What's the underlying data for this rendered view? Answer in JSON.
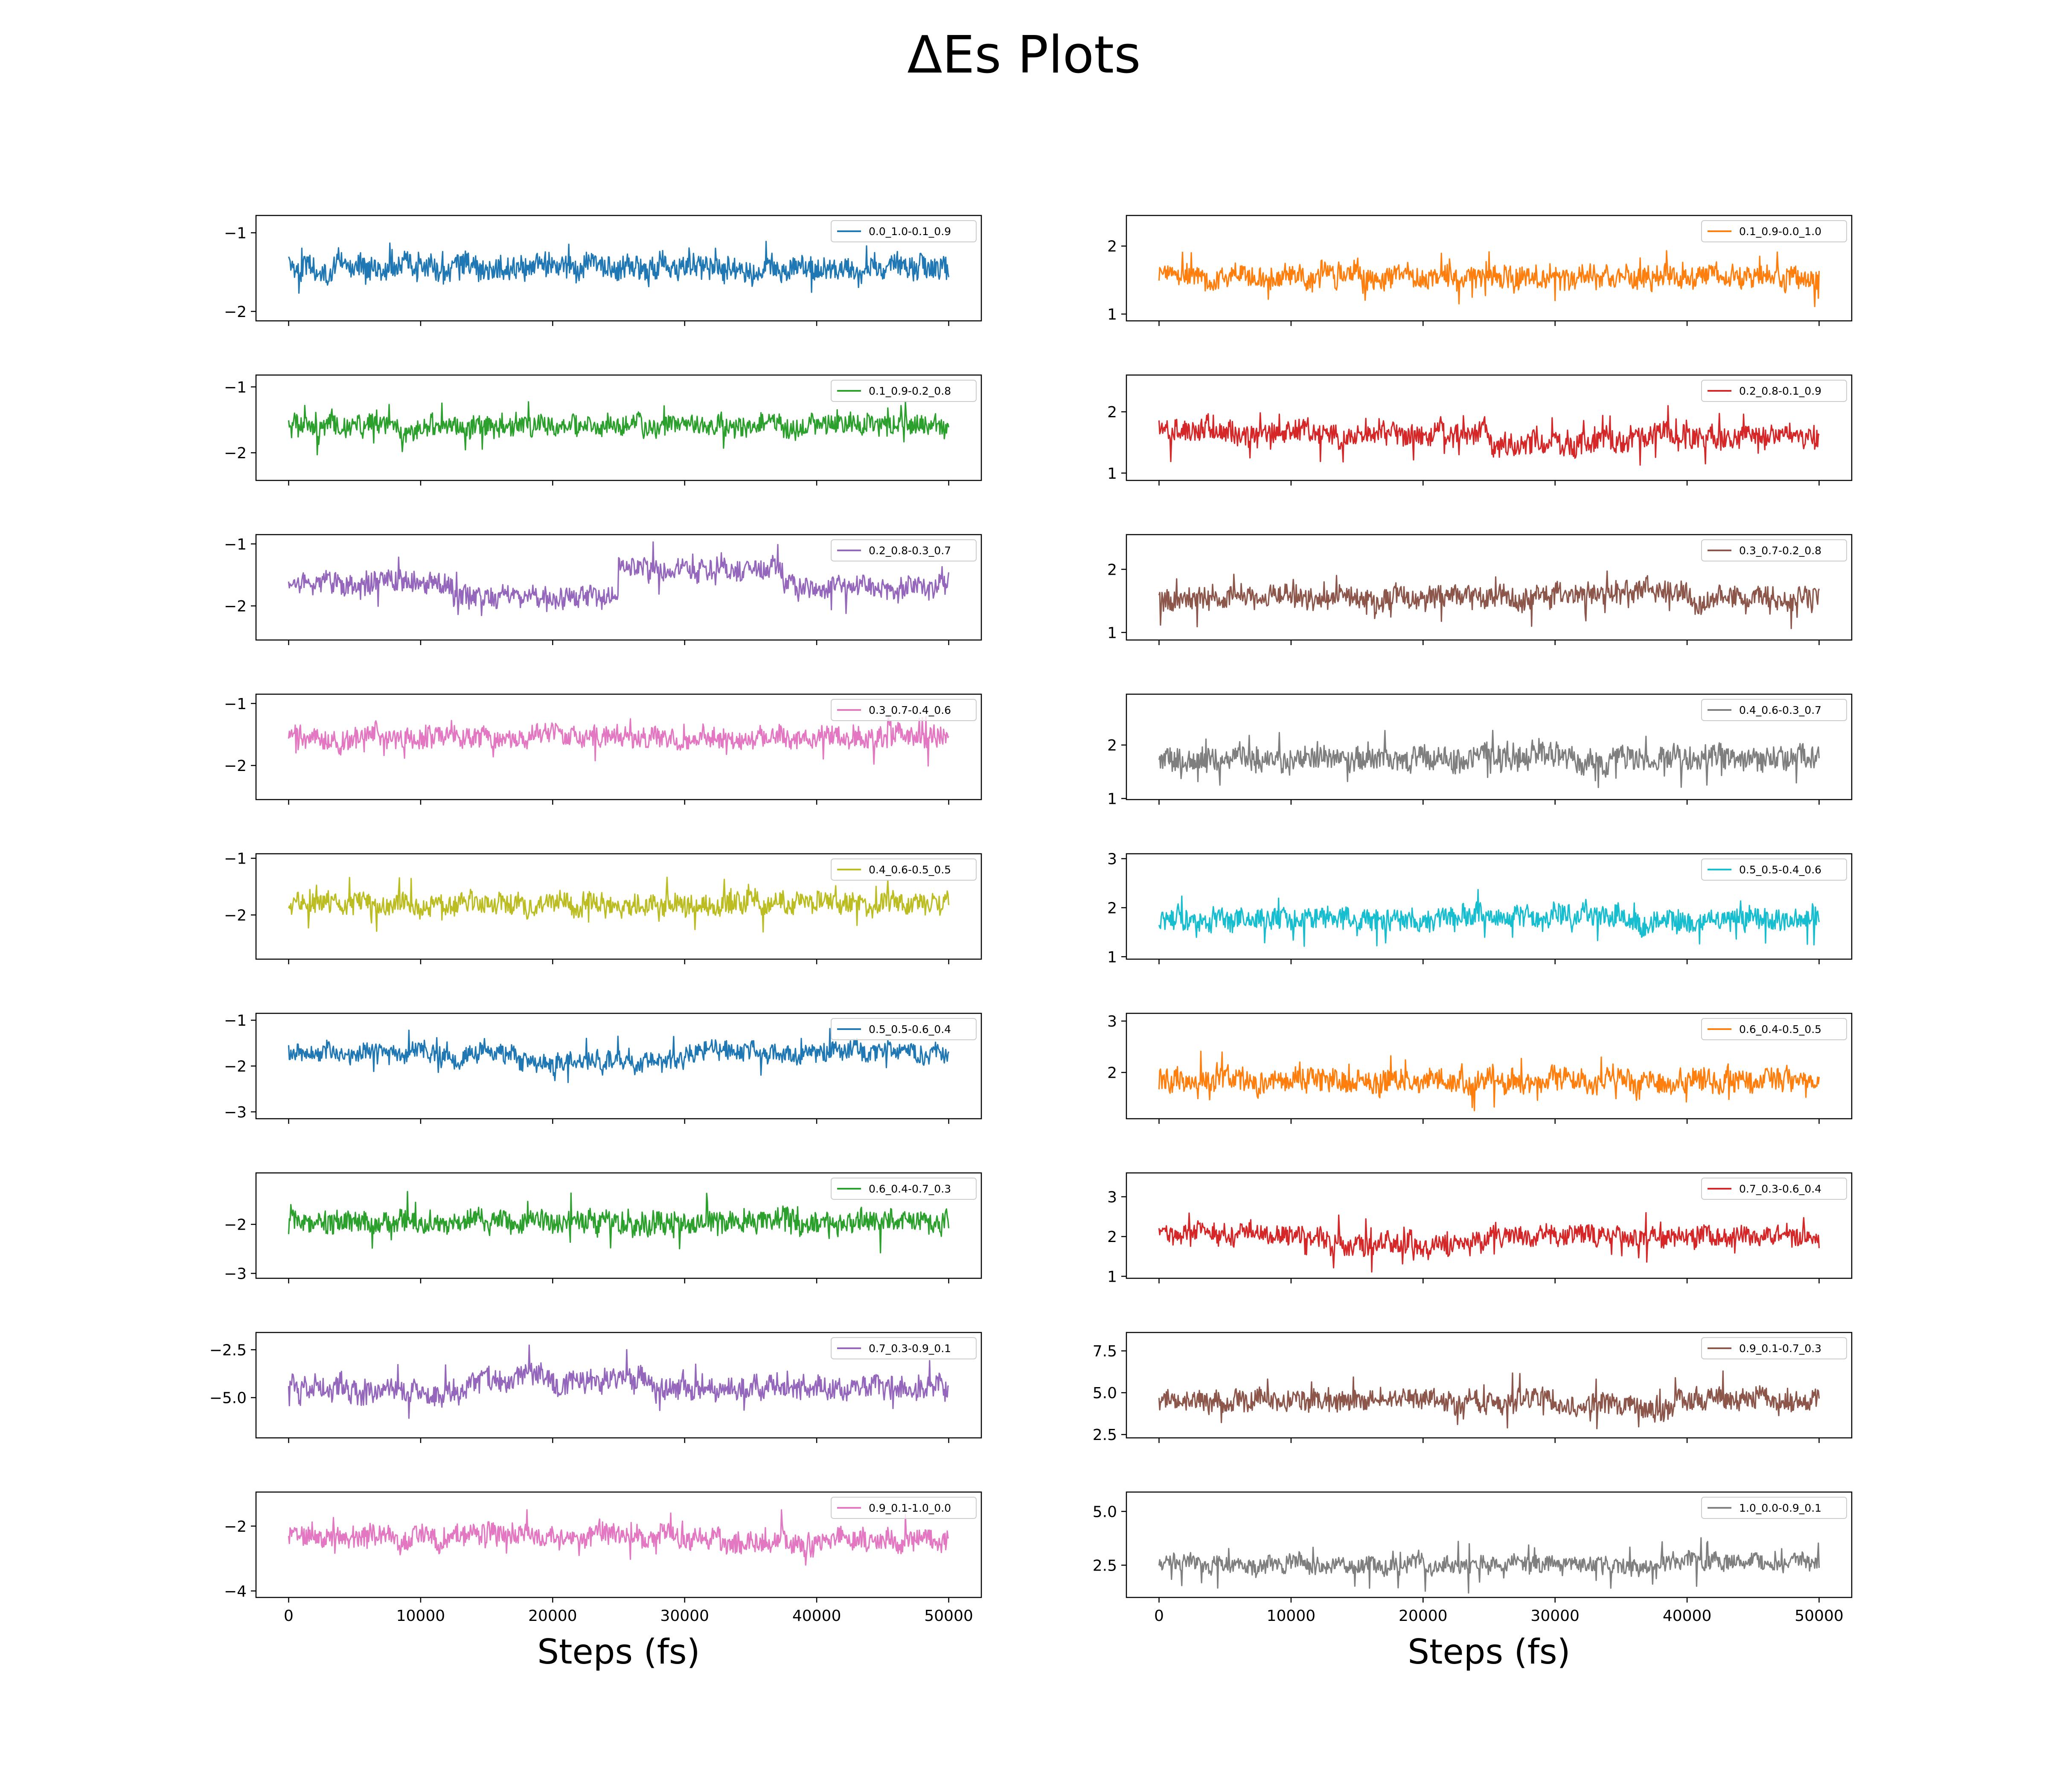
{
  "title": "ΔEs Plots",
  "chart_data": [
    {
      "type": "line",
      "column": "left",
      "row": 0,
      "series": [
        {
          "name": "0.0_1.0-0.1_0.9",
          "color": "#1f77b4",
          "mean": -1.45,
          "noise": 0.14,
          "spike": 0.25,
          "shifts": []
        }
      ],
      "x": {
        "min": 0,
        "max": 50000,
        "ticks": [
          0,
          10000,
          20000,
          30000,
          40000,
          50000
        ],
        "labels": [
          "0",
          "10000",
          "20000",
          "30000",
          "40000",
          "50000"
        ]
      },
      "ylim": [
        -2.12,
        -0.78
      ],
      "yticks": [
        -1,
        -2
      ],
      "ytick_labels": [
        "−1",
        "−2"
      ],
      "xlabel": "",
      "ylabel": "",
      "grid": false,
      "legend": "top-right"
    },
    {
      "type": "line",
      "column": "left",
      "row": 1,
      "series": [
        {
          "name": "0.1_0.9-0.2_0.8",
          "color": "#2ca02c",
          "mean": -1.6,
          "noise": 0.14,
          "spike": 0.25,
          "shifts": []
        }
      ],
      "x": {
        "min": 0,
        "max": 50000,
        "ticks": [
          0,
          10000,
          20000,
          30000,
          40000,
          50000
        ],
        "labels": [
          "0",
          "10000",
          "20000",
          "30000",
          "40000",
          "50000"
        ]
      },
      "ylim": [
        -2.42,
        -0.82
      ],
      "yticks": [
        -1,
        -2
      ],
      "ytick_labels": [
        "−1",
        "−2"
      ],
      "xlabel": "",
      "ylabel": "",
      "grid": false,
      "legend": "top-right"
    },
    {
      "type": "line",
      "column": "left",
      "row": 2,
      "series": [
        {
          "name": "0.2_0.8-0.3_0.7",
          "color": "#9467bd",
          "mean": -1.65,
          "noise": 0.15,
          "spike": 0.28,
          "shifts": [
            [
              0,
              0.25,
              0
            ],
            [
              0.25,
              0.5,
              -0.2
            ],
            [
              0.5,
              0.75,
              0.25
            ],
            [
              0.75,
              1,
              -0.05
            ]
          ]
        }
      ],
      "x": {
        "min": 0,
        "max": 50000,
        "ticks": [
          0,
          10000,
          20000,
          30000,
          40000,
          50000
        ],
        "labels": [
          "0",
          "10000",
          "20000",
          "30000",
          "40000",
          "50000"
        ]
      },
      "ylim": [
        -2.55,
        -0.85
      ],
      "yticks": [
        -1,
        -2
      ],
      "ytick_labels": [
        "−1",
        "−2"
      ],
      "xlabel": "",
      "ylabel": "",
      "grid": false,
      "legend": "top-right"
    },
    {
      "type": "line",
      "column": "left",
      "row": 3,
      "series": [
        {
          "name": "0.3_0.7-0.4_0.6",
          "color": "#e377c2",
          "mean": -1.55,
          "noise": 0.15,
          "spike": 0.27,
          "shifts": []
        }
      ],
      "x": {
        "min": 0,
        "max": 50000,
        "ticks": [
          0,
          10000,
          20000,
          30000,
          40000,
          50000
        ],
        "labels": [
          "0",
          "10000",
          "20000",
          "30000",
          "40000",
          "50000"
        ]
      },
      "ylim": [
        -2.55,
        -0.85
      ],
      "yticks": [
        -1,
        -2
      ],
      "ytick_labels": [
        "−1",
        "−2"
      ],
      "xlabel": "",
      "ylabel": "",
      "grid": false,
      "legend": "top-right"
    },
    {
      "type": "line",
      "column": "left",
      "row": 4,
      "series": [
        {
          "name": "0.4_0.6-0.5_0.5",
          "color": "#bcbd22",
          "mean": -1.8,
          "noise": 0.17,
          "spike": 0.3,
          "shifts": []
        }
      ],
      "x": {
        "min": 0,
        "max": 50000,
        "ticks": [
          0,
          10000,
          20000,
          30000,
          40000,
          50000
        ],
        "labels": [
          "0",
          "10000",
          "20000",
          "30000",
          "40000",
          "50000"
        ]
      },
      "ylim": [
        -2.78,
        -0.92
      ],
      "yticks": [
        -1,
        -2
      ],
      "ytick_labels": [
        "−1",
        "−2"
      ],
      "xlabel": "",
      "ylabel": "",
      "grid": false,
      "legend": "top-right"
    },
    {
      "type": "line",
      "column": "left",
      "row": 5,
      "series": [
        {
          "name": "0.5_0.5-0.6_0.4",
          "color": "#1f77b4",
          "mean": -1.75,
          "noise": 0.18,
          "spike": 0.35,
          "shifts": [
            [
              0,
              0.35,
              0
            ],
            [
              0.35,
              0.6,
              -0.15
            ],
            [
              0.6,
              1,
              0.05
            ]
          ]
        }
      ],
      "x": {
        "min": 0,
        "max": 50000,
        "ticks": [
          0,
          10000,
          20000,
          30000,
          40000,
          50000
        ],
        "labels": [
          "0",
          "10000",
          "20000",
          "30000",
          "40000",
          "50000"
        ]
      },
      "ylim": [
        -3.15,
        -0.85
      ],
      "yticks": [
        -1,
        -2,
        -3
      ],
      "ytick_labels": [
        "−1",
        "−2",
        "−3"
      ],
      "xlabel": "",
      "ylabel": "",
      "grid": false,
      "legend": "top-right"
    },
    {
      "type": "line",
      "column": "left",
      "row": 6,
      "series": [
        {
          "name": "0.6_0.4-0.7_0.3",
          "color": "#2ca02c",
          "mean": -1.95,
          "noise": 0.2,
          "spike": 0.4,
          "shifts": []
        }
      ],
      "x": {
        "min": 0,
        "max": 50000,
        "ticks": [
          0,
          10000,
          20000,
          30000,
          40000,
          50000
        ],
        "labels": [
          "0",
          "10000",
          "20000",
          "30000",
          "40000",
          "50000"
        ]
      },
      "ylim": [
        -3.1,
        -0.95
      ],
      "yticks": [
        -2,
        -3
      ],
      "ytick_labels": [
        "−2",
        "−3"
      ],
      "xlabel": "",
      "ylabel": "",
      "grid": false,
      "legend": "top-right"
    },
    {
      "type": "line",
      "column": "left",
      "row": 7,
      "series": [
        {
          "name": "0.7_0.3-0.9_0.1",
          "color": "#9467bd",
          "mean": -4.6,
          "noise": 0.55,
          "spike": 0.9,
          "shifts": [
            [
              0,
              0.27,
              0
            ],
            [
              0.27,
              0.55,
              0.6
            ],
            [
              0.55,
              1,
              0.1
            ]
          ]
        }
      ],
      "x": {
        "min": 0,
        "max": 50000,
        "ticks": [
          0,
          10000,
          20000,
          30000,
          40000,
          50000
        ],
        "labels": [
          "0",
          "10000",
          "20000",
          "30000",
          "40000",
          "50000"
        ]
      },
      "ylim": [
        -7.1,
        -1.6
      ],
      "yticks": [
        -2.5,
        -5.0
      ],
      "ytick_labels": [
        "−2.5",
        "−5.0"
      ],
      "xlabel": "",
      "ylabel": "",
      "grid": false,
      "legend": "top-right"
    },
    {
      "type": "line",
      "column": "left",
      "row": 8,
      "series": [
        {
          "name": "0.9_0.1-1.0_0.0",
          "color": "#e377c2",
          "mean": -2.4,
          "noise": 0.3,
          "spike": 0.6,
          "shifts": [
            [
              0,
              0.6,
              0.1
            ],
            [
              0.6,
              1,
              -0.05
            ]
          ]
        }
      ],
      "x": {
        "min": 0,
        "max": 50000,
        "ticks": [
          0,
          10000,
          20000,
          30000,
          40000,
          50000
        ],
        "labels": [
          "0",
          "10000",
          "20000",
          "30000",
          "40000",
          "50000"
        ]
      },
      "ylim": [
        -4.2,
        -0.95
      ],
      "yticks": [
        -2,
        -4
      ],
      "ytick_labels": [
        "−2",
        "−4"
      ],
      "xlabel": "Steps (fs)",
      "ylabel": "",
      "grid": false,
      "legend": "top-right"
    },
    {
      "type": "line",
      "column": "right",
      "row": 0,
      "series": [
        {
          "name": "0.1_0.9-0.0_1.0",
          "color": "#ff7f0e",
          "mean": 1.55,
          "noise": 0.15,
          "spike": 0.27,
          "shifts": []
        }
      ],
      "x": {
        "min": 0,
        "max": 50000,
        "ticks": [
          0,
          10000,
          20000,
          30000,
          40000,
          50000
        ],
        "labels": [
          "0",
          "10000",
          "20000",
          "30000",
          "40000",
          "50000"
        ]
      },
      "ylim": [
        0.9,
        2.45
      ],
      "yticks": [
        1,
        2
      ],
      "ytick_labels": [
        "1",
        "2"
      ],
      "xlabel": "",
      "ylabel": "",
      "grid": false,
      "legend": "top-right"
    },
    {
      "type": "line",
      "column": "right",
      "row": 1,
      "series": [
        {
          "name": "0.2_0.8-0.1_0.9",
          "color": "#d62728",
          "mean": 1.6,
          "noise": 0.17,
          "spike": 0.3,
          "shifts": [
            [
              0,
              0.5,
              0.05
            ],
            [
              0.5,
              0.75,
              -0.1
            ],
            [
              0.75,
              1,
              0.0
            ]
          ]
        }
      ],
      "x": {
        "min": 0,
        "max": 50000,
        "ticks": [
          0,
          10000,
          20000,
          30000,
          40000,
          50000
        ],
        "labels": [
          "0",
          "10000",
          "20000",
          "30000",
          "40000",
          "50000"
        ]
      },
      "ylim": [
        0.88,
        2.6
      ],
      "yticks": [
        1,
        2
      ],
      "ytick_labels": [
        "1",
        "2"
      ],
      "xlabel": "",
      "ylabel": "",
      "grid": false,
      "legend": "top-right"
    },
    {
      "type": "line",
      "column": "right",
      "row": 2,
      "series": [
        {
          "name": "0.3_0.7-0.2_0.8",
          "color": "#8c564b",
          "mean": 1.55,
          "noise": 0.16,
          "spike": 0.3,
          "shifts": [
            [
              0,
              0.6,
              0
            ],
            [
              0.6,
              0.8,
              0.1
            ],
            [
              0.8,
              1,
              0
            ]
          ]
        }
      ],
      "x": {
        "min": 0,
        "max": 50000,
        "ticks": [
          0,
          10000,
          20000,
          30000,
          40000,
          50000
        ],
        "labels": [
          "0",
          "10000",
          "20000",
          "30000",
          "40000",
          "50000"
        ]
      },
      "ylim": [
        0.88,
        2.55
      ],
      "yticks": [
        1,
        2
      ],
      "ytick_labels": [
        "1",
        "2"
      ],
      "xlabel": "",
      "ylabel": "",
      "grid": false,
      "legend": "top-right"
    },
    {
      "type": "line",
      "column": "right",
      "row": 3,
      "series": [
        {
          "name": "0.4_0.6-0.3_0.7",
          "color": "#7f7f7f",
          "mean": 1.75,
          "noise": 0.2,
          "spike": 0.35,
          "shifts": []
        }
      ],
      "x": {
        "min": 0,
        "max": 50000,
        "ticks": [
          0,
          10000,
          20000,
          30000,
          40000,
          50000
        ],
        "labels": [
          "0",
          "10000",
          "20000",
          "30000",
          "40000",
          "50000"
        ]
      },
      "ylim": [
        0.98,
        2.95
      ],
      "yticks": [
        1,
        2
      ],
      "ytick_labels": [
        "1",
        "2"
      ],
      "xlabel": "",
      "ylabel": "",
      "grid": false,
      "legend": "top-right"
    },
    {
      "type": "line",
      "column": "right",
      "row": 4,
      "series": [
        {
          "name": "0.5_0.5-0.4_0.6",
          "color": "#17becf",
          "mean": 1.75,
          "noise": 0.2,
          "spike": 0.4,
          "shifts": [
            [
              0,
              0.45,
              0
            ],
            [
              0.45,
              0.7,
              0.1
            ],
            [
              0.7,
              1,
              0
            ]
          ]
        }
      ],
      "x": {
        "min": 0,
        "max": 50000,
        "ticks": [
          0,
          10000,
          20000,
          30000,
          40000,
          50000
        ],
        "labels": [
          "0",
          "10000",
          "20000",
          "30000",
          "40000",
          "50000"
        ]
      },
      "ylim": [
        0.95,
        3.1
      ],
      "yticks": [
        1,
        2,
        3
      ],
      "ytick_labels": [
        "1",
        "2",
        "3"
      ],
      "xlabel": "",
      "ylabel": "",
      "grid": false,
      "legend": "top-right"
    },
    {
      "type": "line",
      "column": "right",
      "row": 5,
      "series": [
        {
          "name": "0.6_0.4-0.5_0.5",
          "color": "#ff7f0e",
          "mean": 1.85,
          "noise": 0.2,
          "spike": 0.45,
          "shifts": []
        }
      ],
      "x": {
        "min": 0,
        "max": 50000,
        "ticks": [
          0,
          10000,
          20000,
          30000,
          40000,
          50000
        ],
        "labels": [
          "0",
          "10000",
          "20000",
          "30000",
          "40000",
          "50000"
        ]
      },
      "ylim": [
        1.1,
        3.15
      ],
      "yticks": [
        2,
        3
      ],
      "ytick_labels": [
        "2",
        "3"
      ],
      "xlabel": "",
      "ylabel": "",
      "grid": false,
      "legend": "top-right"
    },
    {
      "type": "line",
      "column": "right",
      "row": 6,
      "series": [
        {
          "name": "0.7_0.3-0.6_0.4",
          "color": "#d62728",
          "mean": 2.0,
          "noise": 0.22,
          "spike": 0.45,
          "shifts": [
            [
              0,
              0.25,
              0.05
            ],
            [
              0.25,
              0.5,
              -0.2
            ],
            [
              0.5,
              1,
              0
            ]
          ]
        }
      ],
      "x": {
        "min": 0,
        "max": 50000,
        "ticks": [
          0,
          10000,
          20000,
          30000,
          40000,
          50000
        ],
        "labels": [
          "0",
          "10000",
          "20000",
          "30000",
          "40000",
          "50000"
        ]
      },
      "ylim": [
        0.95,
        3.6
      ],
      "yticks": [
        1,
        2,
        3
      ],
      "ytick_labels": [
        "1",
        "2",
        "3"
      ],
      "xlabel": "",
      "ylabel": "",
      "grid": false,
      "legend": "top-right"
    },
    {
      "type": "line",
      "column": "right",
      "row": 7,
      "series": [
        {
          "name": "0.9_0.1-0.7_0.3",
          "color": "#8c564b",
          "mean": 4.5,
          "noise": 0.55,
          "spike": 1.0,
          "shifts": [
            [
              0,
              0.6,
              0
            ],
            [
              0.6,
              0.78,
              -0.3
            ],
            [
              0.78,
              1,
              0.15
            ]
          ]
        }
      ],
      "x": {
        "min": 0,
        "max": 50000,
        "ticks": [
          0,
          10000,
          20000,
          30000,
          40000,
          50000
        ],
        "labels": [
          "0",
          "10000",
          "20000",
          "30000",
          "40000",
          "50000"
        ]
      },
      "ylim": [
        2.3,
        8.6
      ],
      "yticks": [
        2.5,
        5.0,
        7.5
      ],
      "ytick_labels": [
        "2.5",
        "5.0",
        "7.5"
      ],
      "xlabel": "",
      "ylabel": "",
      "grid": false,
      "legend": "top-right"
    },
    {
      "type": "line",
      "column": "right",
      "row": 8,
      "series": [
        {
          "name": "1.0_0.0-0.9_0.1",
          "color": "#7f7f7f",
          "mean": 2.5,
          "noise": 0.35,
          "spike": 0.9,
          "shifts": [
            [
              0,
              0.75,
              0
            ],
            [
              0.75,
              1,
              0.2
            ]
          ]
        }
      ],
      "x": {
        "min": 0,
        "max": 50000,
        "ticks": [
          0,
          10000,
          20000,
          30000,
          40000,
          50000
        ],
        "labels": [
          "0",
          "10000",
          "20000",
          "30000",
          "40000",
          "50000"
        ]
      },
      "ylim": [
        1.0,
        5.9
      ],
      "yticks": [
        2.5,
        5.0
      ],
      "ytick_labels": [
        "2.5",
        "5.0"
      ],
      "xlabel": "Steps (fs)",
      "ylabel": "",
      "grid": false,
      "legend": "top-right"
    }
  ]
}
